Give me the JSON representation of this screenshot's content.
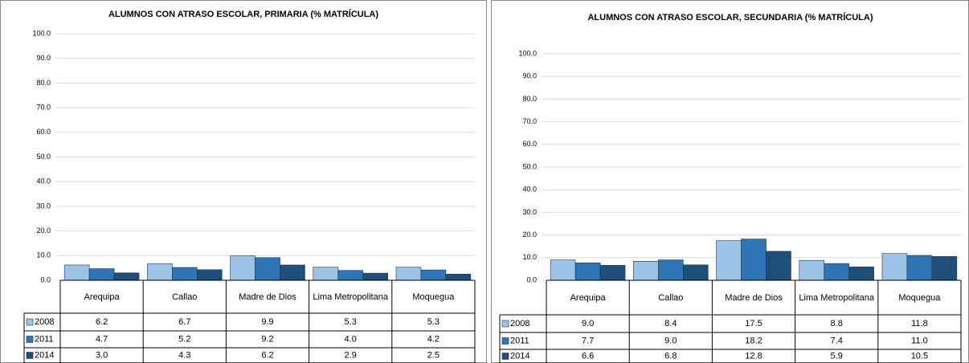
{
  "chart_data": [
    {
      "type": "bar",
      "title": "ALUMNOS CON ATRASO ESCOLAR, PRIMARIA (% MATRÍCULA)",
      "categories": [
        "Arequipa",
        "Callao",
        "Madre de Dios",
        "Lima Metropolitana",
        "Moquegua"
      ],
      "series": [
        {
          "name": "2008",
          "color": "#9dc3e6",
          "values": [
            6.2,
            6.7,
            9.9,
            5.3,
            5.3
          ],
          "value_labels": [
            "6.2",
            "6.7",
            "9.9",
            "5.3",
            "5.3"
          ]
        },
        {
          "name": "2011",
          "color": "#2e75b6",
          "values": [
            4.7,
            5.2,
            9.2,
            4.0,
            4.2
          ],
          "value_labels": [
            "4.7",
            "5.2",
            "9.2",
            "4.0",
            "4.2"
          ]
        },
        {
          "name": "2014",
          "color": "#1f4e79",
          "values": [
            3.0,
            4.3,
            6.2,
            2.9,
            2.5
          ],
          "value_labels": [
            "3.0",
            "4.3",
            "6.2",
            "2.9",
            "2.5"
          ]
        }
      ],
      "ylim": [
        0,
        100
      ],
      "yticks": [
        {
          "value": 0,
          "label": "0.0"
        },
        {
          "value": 10,
          "label": "10.0"
        },
        {
          "value": 20,
          "label": "20.0"
        },
        {
          "value": 30,
          "label": "30.0"
        },
        {
          "value": 40,
          "label": "40.0"
        },
        {
          "value": 50,
          "label": "50.0"
        },
        {
          "value": 60,
          "label": "60.0"
        },
        {
          "value": 70,
          "label": "70.0"
        },
        {
          "value": 80,
          "label": "80.0"
        },
        {
          "value": 90,
          "label": "90.0"
        },
        {
          "value": 100,
          "label": "100.0"
        }
      ],
      "grid": true
    },
    {
      "type": "bar",
      "title": "ALUMNOS CON ATRASO ESCOLAR, SECUNDARIA (% MATRÍCULA)",
      "categories": [
        "Arequipa",
        "Callao",
        "Madre de Dios",
        "Lima Metropolitana",
        "Moquegua"
      ],
      "series": [
        {
          "name": "2008",
          "color": "#9dc3e6",
          "values": [
            9.0,
            8.4,
            17.5,
            8.8,
            11.8
          ],
          "value_labels": [
            "9.0",
            "8.4",
            "17.5",
            "8.8",
            "11.8"
          ]
        },
        {
          "name": "2011",
          "color": "#2e75b6",
          "values": [
            7.7,
            9.0,
            18.2,
            7.4,
            11.0
          ],
          "value_labels": [
            "7.7",
            "9.0",
            "18.2",
            "7.4",
            "11.0"
          ]
        },
        {
          "name": "2014",
          "color": "#1f4e79",
          "values": [
            6.6,
            6.8,
            12.8,
            5.9,
            10.5
          ],
          "value_labels": [
            "6.6",
            "6.8",
            "12.8",
            "5.9",
            "10.5"
          ]
        }
      ],
      "ylim": [
        0,
        100
      ],
      "yticks": [
        {
          "value": 0,
          "label": "0.0"
        },
        {
          "value": 10,
          "label": "10.0"
        },
        {
          "value": 20,
          "label": "20.0"
        },
        {
          "value": 30,
          "label": "30.0"
        },
        {
          "value": 40,
          "label": "40.0"
        },
        {
          "value": 50,
          "label": "50.0"
        },
        {
          "value": 60,
          "label": "60.0"
        },
        {
          "value": 70,
          "label": "70.0"
        },
        {
          "value": 80,
          "label": "80.0"
        },
        {
          "value": 90,
          "label": "90.0"
        },
        {
          "value": 100,
          "label": "100.0"
        }
      ],
      "grid": true
    }
  ]
}
